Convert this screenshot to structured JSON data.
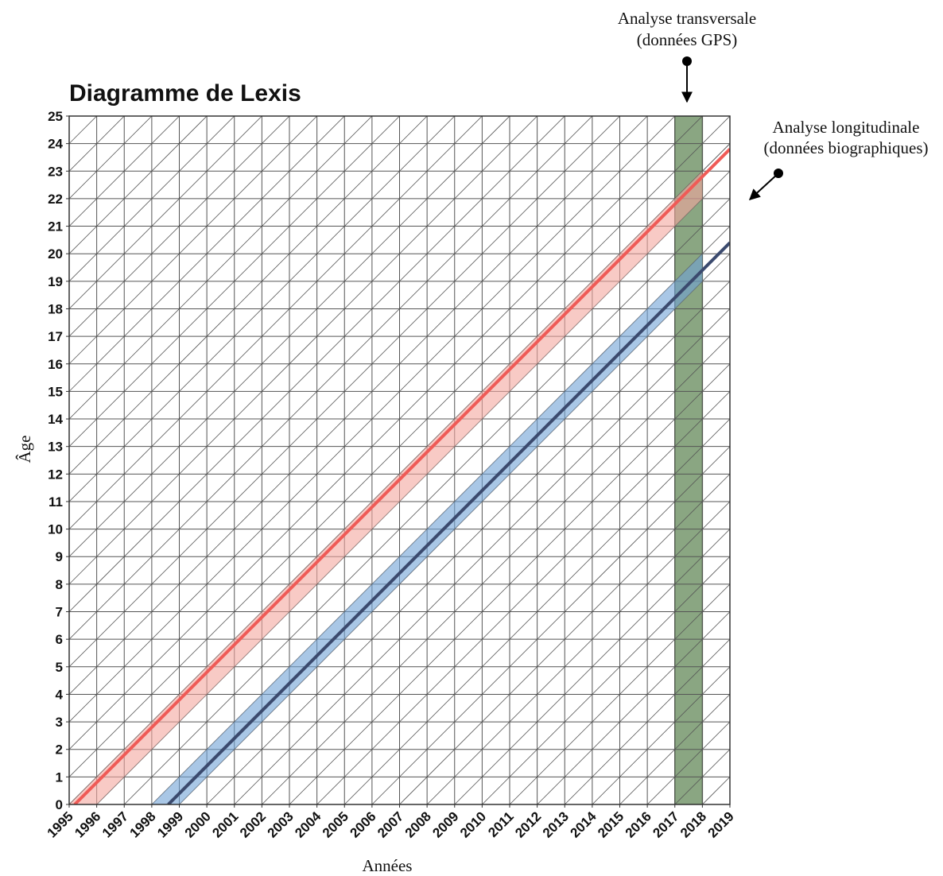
{
  "chart_data": {
    "type": "lexis",
    "title": "Diagramme de Lexis",
    "xlabel": "Années",
    "ylabel": "Âge",
    "xlim": [
      1995,
      2019
    ],
    "ylim": [
      0,
      25
    ],
    "xticks": [
      1995,
      1996,
      1997,
      1998,
      1999,
      2000,
      2001,
      2002,
      2003,
      2004,
      2005,
      2006,
      2007,
      2008,
      2009,
      2010,
      2011,
      2012,
      2013,
      2014,
      2015,
      2016,
      2017,
      2018,
      2019
    ],
    "yticks": [
      0,
      1,
      2,
      3,
      4,
      5,
      6,
      7,
      8,
      9,
      10,
      11,
      12,
      13,
      14,
      15,
      16,
      17,
      18,
      19,
      20,
      21,
      22,
      23,
      24,
      25
    ],
    "grid": true,
    "highlight": {
      "xlim": [
        2017,
        2018
      ],
      "color": "#8aa682"
    },
    "bands": [
      {
        "color": "#f4a79e",
        "x": [
          1995,
          1996,
          2018,
          2018
        ],
        "values": [
          0,
          0,
          22,
          23
        ]
      },
      {
        "color": "#6fa2d6",
        "x": [
          1998,
          1999,
          2018,
          2018
        ],
        "values": [
          0,
          0,
          19,
          20
        ]
      }
    ],
    "series": [
      {
        "color": "#ef5b57",
        "x": [
          1995.2,
          2019
        ],
        "values": [
          0,
          23.8
        ]
      },
      {
        "color": "#3b4a6e",
        "x": [
          1998.6,
          2019
        ],
        "values": [
          0,
          20.4
        ]
      }
    ],
    "annotations": [
      {
        "lines": [
          "Analyse transversale",
          "(données GPS)"
        ]
      },
      {
        "lines": [
          "Analyse longitudinale",
          "(données biographiques)"
        ]
      }
    ]
  }
}
